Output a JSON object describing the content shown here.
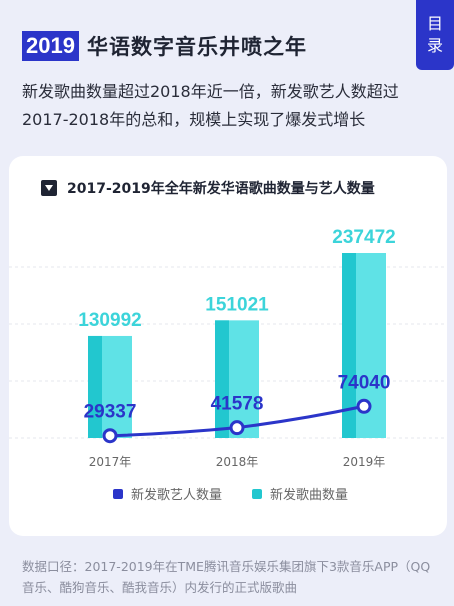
{
  "toc": {
    "line1": "目",
    "line2": "录"
  },
  "header": {
    "year": "2019",
    "title": "华语数字音乐井喷之年"
  },
  "description": "新发歌曲数量超过2018年近一倍，新发歌艺人数超过2017-2018年的总和，规模上实现了爆发式增长",
  "source_note": "数据口径：2017-2019年在TME腾讯音乐娱乐集团旗下3款音乐APP（QQ音乐、酷狗音乐、酷我音乐）内发行的正式版歌曲",
  "colors": {
    "accent": "#2b35c9",
    "songs": "#5fe2e6",
    "songs_dark": "#22c7cf",
    "artists": "#2b35c9"
  },
  "chart_data": {
    "type": "bar",
    "title": "2017-2019年全年新发华语歌曲数量与艺人数量",
    "categories": [
      "2017年",
      "2018年",
      "2019年"
    ],
    "series": [
      {
        "name": "新发歌曲数量",
        "type": "bar",
        "values": [
          130992,
          151021,
          237472
        ]
      },
      {
        "name": "新发歌艺人数量",
        "type": "line",
        "values": [
          29337,
          41578,
          74040
        ]
      }
    ],
    "legend_order": [
      "新发歌艺人数量",
      "新发歌曲数量"
    ],
    "grid": true,
    "legend": "bottom"
  }
}
